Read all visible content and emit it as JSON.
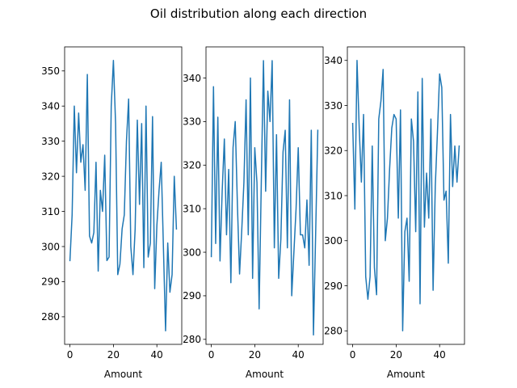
{
  "figure": {
    "title": "Oil distribution along each direction",
    "line_color": "#1f77b4"
  },
  "chart_data": [
    {
      "type": "line",
      "title": "",
      "xlabel": "Amount",
      "ylabel": "",
      "xlim": [
        -2.45,
        51.45
      ],
      "ylim": [
        272.15,
        356.85
      ],
      "xticks": [
        0,
        20,
        40
      ],
      "yticks": [
        280,
        290,
        300,
        310,
        320,
        330,
        340,
        350
      ],
      "grid": false,
      "series": [
        {
          "values": [
            296,
            309,
            340,
            321,
            338,
            324,
            329,
            316,
            349,
            303,
            301,
            304,
            324,
            293,
            316,
            310,
            326,
            296,
            297,
            340,
            353,
            335,
            292,
            295,
            305,
            309,
            330,
            342,
            300,
            292,
            305,
            336,
            312,
            335,
            294,
            340,
            297,
            301,
            337,
            288,
            306,
            316,
            324,
            300,
            276,
            301,
            287,
            292,
            320,
            305
          ]
        }
      ]
    },
    {
      "type": "line",
      "title": "",
      "xlabel": "Amount",
      "ylabel": "",
      "xlim": [
        -2.45,
        51.45
      ],
      "ylim": [
        278.85,
        347.15
      ],
      "xticks": [
        0,
        20,
        40
      ],
      "yticks": [
        280,
        290,
        300,
        310,
        320,
        330,
        340
      ],
      "grid": false,
      "series": [
        {
          "values": [
            299,
            338,
            302,
            331,
            298,
            314,
            326,
            304,
            319,
            293,
            324,
            330,
            311,
            295,
            305,
            316,
            335,
            304,
            340,
            294,
            324,
            316,
            287,
            316,
            344,
            314,
            337,
            330,
            344,
            301,
            327,
            294,
            303,
            323,
            328,
            301,
            335,
            290,
            300,
            310,
            324,
            304,
            304,
            301,
            312,
            297,
            328,
            281,
            304,
            328
          ]
        }
      ]
    },
    {
      "type": "line",
      "title": "",
      "xlabel": "Amount",
      "ylabel": "",
      "xlim": [
        -2.45,
        51.45
      ],
      "ylim": [
        277,
        343
      ],
      "xticks": [
        0,
        20,
        40
      ],
      "yticks": [
        280,
        290,
        300,
        310,
        320,
        330,
        340
      ],
      "grid": false,
      "series": [
        {
          "values": [
            326,
            307,
            340,
            325,
            313,
            328,
            292,
            287,
            292,
            321,
            294,
            288,
            327,
            331,
            338,
            300,
            305,
            316,
            325,
            328,
            327,
            305,
            329,
            280,
            302,
            305,
            291,
            327,
            322,
            302,
            333,
            286,
            336,
            303,
            315,
            305,
            327,
            289,
            312,
            324,
            337,
            334,
            309,
            311,
            295,
            328,
            312,
            321,
            313,
            321
          ]
        }
      ]
    }
  ]
}
